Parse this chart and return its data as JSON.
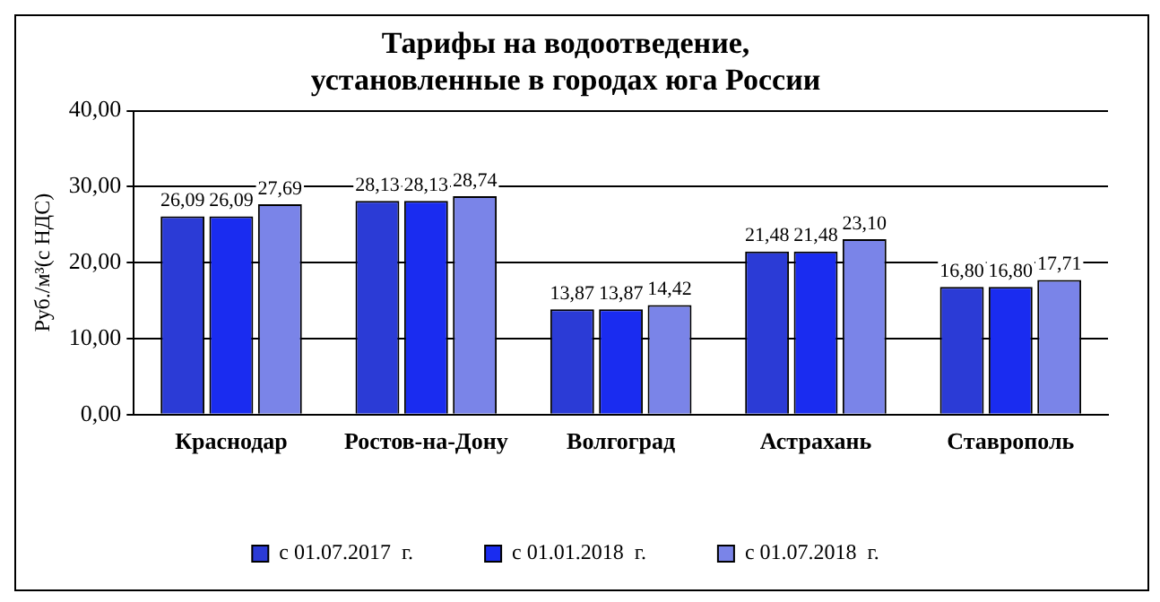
{
  "chart_data": {
    "type": "bar",
    "title": "Тарифы на водоотведение,\nустановленные в городах юга России",
    "ylabel": "Руб./м³(с НДС)",
    "categories": [
      "Краснодар",
      "Ростов-на-Дону",
      "Волгоград",
      "Астрахань",
      "Ставрополь"
    ],
    "series": [
      {
        "name": "с 01.07.2017  г.",
        "color": "#2b3bd6",
        "values": [
          26.09,
          28.13,
          13.87,
          21.48,
          16.8
        ],
        "value_labels": [
          "26,09",
          "28,13",
          "13,87",
          "21,48",
          "16,80"
        ]
      },
      {
        "name": "с 01.01.2018  г.",
        "color": "#1a2cf0",
        "values": [
          26.09,
          28.13,
          13.87,
          21.48,
          16.8
        ],
        "value_labels": [
          "26,09",
          "28,13",
          "13,87",
          "21,48",
          "16,80"
        ]
      },
      {
        "name": "с 01.07.2018  г.",
        "color": "#7a84e8",
        "values": [
          27.69,
          28.74,
          14.42,
          23.1,
          17.71
        ],
        "value_labels": [
          "27,69",
          "28,74",
          "14,42",
          "23,10",
          "17,71"
        ]
      }
    ],
    "ylim": [
      0,
      40
    ],
    "yticks": [
      {
        "value": 0,
        "label": "0,00"
      },
      {
        "value": 10,
        "label": "10,00"
      },
      {
        "value": 20,
        "label": "20,00"
      },
      {
        "value": 30,
        "label": "30,00"
      },
      {
        "value": 40,
        "label": "40,00"
      }
    ],
    "grid": "y",
    "legend": "bottom"
  }
}
